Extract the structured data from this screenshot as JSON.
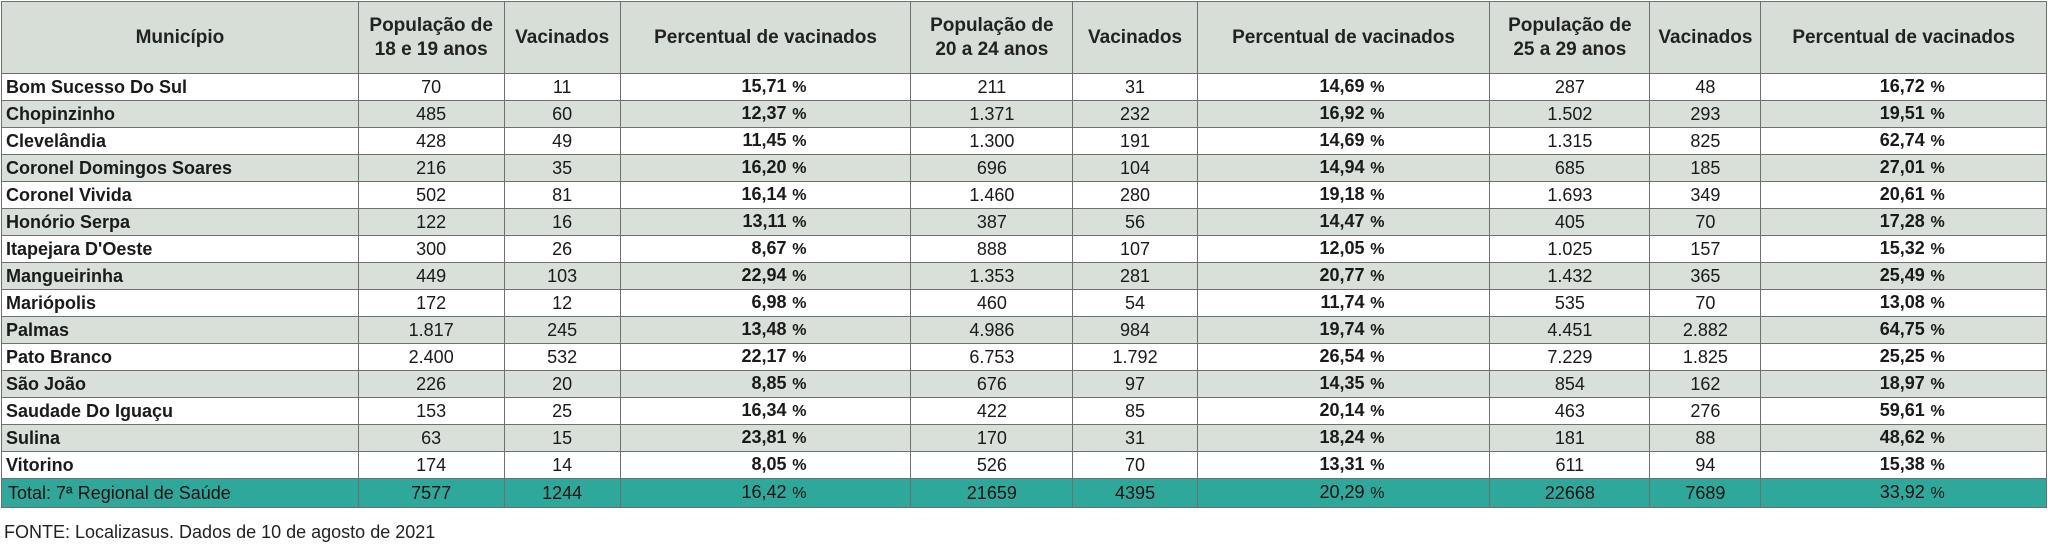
{
  "table": {
    "headers": {
      "municipio": "Município",
      "pop_18_19_line1": "População de",
      "pop_18_19_line2": "18 e 19 anos",
      "vac_1": "Vacinados",
      "pct_1": "Percentual de vacinados",
      "pop_20_24_line1": "População de",
      "pop_20_24_line2": "20 a 24 anos",
      "vac_2": "Vacinados",
      "pct_2": "Percentual de vacinados",
      "pop_25_29_line1": "População de",
      "pop_25_29_line2": "25 a 29 anos",
      "vac_3": "Vacinados",
      "pct_3": "Percentual de vacinados"
    },
    "percent_sign": "%",
    "rows": [
      [
        "Bom Sucesso Do Sul",
        "70",
        "11",
        "15,71",
        "211",
        "31",
        "14,69",
        "287",
        "48",
        "16,72"
      ],
      [
        "Chopinzinho",
        "485",
        "60",
        "12,37",
        "1.371",
        "232",
        "16,92",
        "1.502",
        "293",
        "19,51"
      ],
      [
        "Clevelândia",
        "428",
        "49",
        "11,45",
        "1.300",
        "191",
        "14,69",
        "1.315",
        "825",
        "62,74"
      ],
      [
        "Coronel Domingos Soares",
        "216",
        "35",
        "16,20",
        "696",
        "104",
        "14,94",
        "685",
        "185",
        "27,01"
      ],
      [
        "Coronel Vivida",
        "502",
        "81",
        "16,14",
        "1.460",
        "280",
        "19,18",
        "1.693",
        "349",
        "20,61"
      ],
      [
        "Honório Serpa",
        "122",
        "16",
        "13,11",
        "387",
        "56",
        "14,47",
        "405",
        "70",
        "17,28"
      ],
      [
        "Itapejara D'Oeste",
        "300",
        "26",
        "8,67",
        "888",
        "107",
        "12,05",
        "1.025",
        "157",
        "15,32"
      ],
      [
        "Mangueirinha",
        "449",
        "103",
        "22,94",
        "1.353",
        "281",
        "20,77",
        "1.432",
        "365",
        "25,49"
      ],
      [
        "Mariópolis",
        "172",
        "12",
        "6,98",
        "460",
        "54",
        "11,74",
        "535",
        "70",
        "13,08"
      ],
      [
        "Palmas",
        "1.817",
        "245",
        "13,48",
        "4.986",
        "984",
        "19,74",
        "4.451",
        "2.882",
        "64,75"
      ],
      [
        "Pato Branco",
        "2.400",
        "532",
        "22,17",
        "6.753",
        "1.792",
        "26,54",
        "7.229",
        "1.825",
        "25,25"
      ],
      [
        "São João",
        "226",
        "20",
        "8,85",
        "676",
        "97",
        "14,35",
        "854",
        "162",
        "18,97"
      ],
      [
        "Saudade Do Iguaçu",
        "153",
        "25",
        "16,34",
        "422",
        "85",
        "20,14",
        "463",
        "276",
        "59,61"
      ],
      [
        "Sulina",
        "63",
        "15",
        "23,81",
        "170",
        "31",
        "18,24",
        "181",
        "88",
        "48,62"
      ],
      [
        "Vitorino",
        "174",
        "14",
        "8,05",
        "526",
        "70",
        "13,31",
        "611",
        "94",
        "15,38"
      ]
    ],
    "total": [
      "Total: 7ª Regional de Saúde",
      "7577",
      "1244",
      "16,42",
      "21659",
      "4395",
      "20,29",
      "22668",
      "7689",
      "33,92"
    ]
  },
  "footer": {
    "source": "FONTE: Localizasus. Dados de 10 de agosto de 2021"
  },
  "colors": {
    "header_bg": "#d7ddd7",
    "stripe_bg": "#d9dfd9",
    "total_bg": "#2fa89c"
  }
}
